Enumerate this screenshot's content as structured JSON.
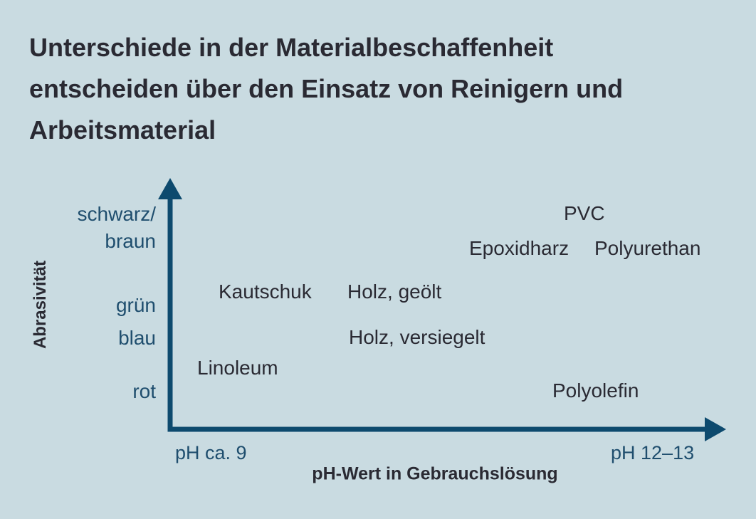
{
  "title": {
    "lines": [
      "Unterschiede in der Materialbeschaffenheit",
      "entscheiden über den Einsatz von Reinigern und",
      "Arbeitsmaterial"
    ]
  },
  "y_axis": {
    "title": "Abrasivität",
    "labels": {
      "top_line1": "schwarz/",
      "top_line2": "braun",
      "green": "grün",
      "blue": "blau",
      "red": "rot"
    }
  },
  "x_axis": {
    "title": "pH-Wert in Gebrauchslösung",
    "min_label": "pH ca. 9",
    "max_label": "pH 12–13"
  },
  "materials": {
    "pvc": "PVC",
    "epoxidharz": "Epoxidharz",
    "polyurethan": "Polyurethan",
    "kautschuk": "Kautschuk",
    "holz_geoelt": "Holz, geölt",
    "holz_versiegelt": "Holz, versiegelt",
    "linoleum": "Linoleum",
    "polyolefin": "Polyolefin"
  },
  "colors": {
    "background": "#c9dbe1",
    "axis": "#0d4a6e",
    "title_text": "#2a2a33",
    "axis_label_text": "#1f4e6e"
  }
}
